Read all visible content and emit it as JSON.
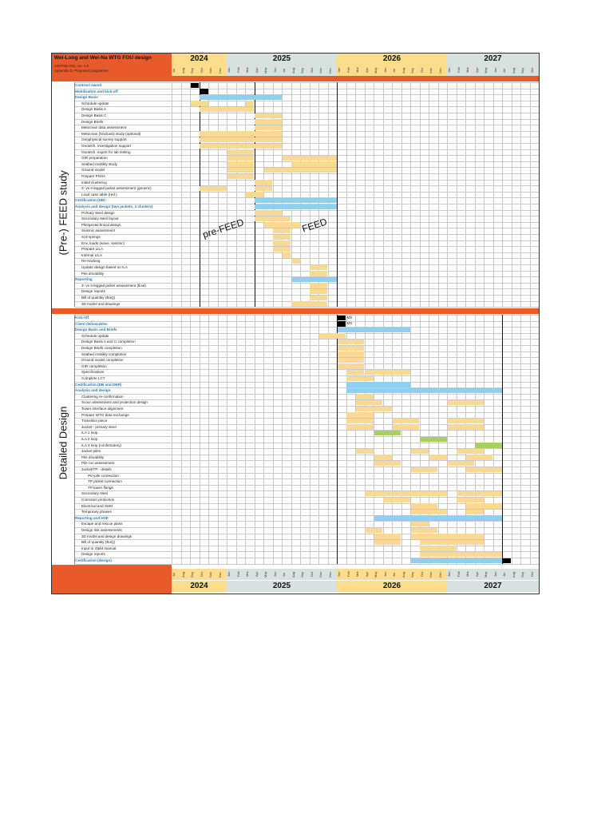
{
  "header": {
    "title": "Wei-Long and Wei-Na WTG FOU design",
    "doc_ref": "A257852-001, ver. 2.0",
    "appendix": "Appendix D, Proposed programme"
  },
  "years": [
    {
      "label": "2024",
      "color": "#fbdd8c"
    },
    {
      "label": "2025",
      "color": "#d7e1df"
    },
    {
      "label": "2026",
      "color": "#fbdd8c"
    },
    {
      "label": "2027",
      "color": "#d7e1df"
    }
  ],
  "months": [
    "Jul",
    "Aug",
    "Sep",
    "Oct",
    "Nov",
    "Dec",
    "Jan",
    "Feb",
    "Mar",
    "Apr",
    "May",
    "Jun",
    "Jul",
    "Aug",
    "Sep",
    "Oct",
    "Nov",
    "Dec",
    "Jan",
    "Feb",
    "Mar",
    "Apr",
    "May",
    "Jun",
    "Jul",
    "Aug",
    "Sep",
    "Oct",
    "Nov",
    "Dec",
    "Jan",
    "Feb",
    "Mar",
    "Apr",
    "May",
    "Jun",
    "Jul",
    "Aug",
    "Sep",
    "Oct"
  ],
  "colors": {
    "orange_band": "#e85a2a",
    "task": "#f9d993",
    "milestone": "#000000",
    "blue": "#8fd0f0",
    "green": "#a8cf62",
    "header_text": "#2a7ab0"
  },
  "sections": {
    "prefeed_label": "(Pre-) FEED study",
    "detailed_label": "Detailed Design",
    "prefeed_phase": "pre-FEED",
    "feed_phase": "FEED"
  },
  "tasks_top": [
    {
      "label": "Contract award",
      "hdr": true,
      "bars": [
        [
          2,
          2,
          "k"
        ]
      ]
    },
    {
      "label": "Mobilization and kick-off",
      "hdr": true,
      "bars": [
        [
          3,
          3,
          "k"
        ]
      ]
    },
    {
      "label": "Design Basis",
      "hdr": true,
      "bars": [
        [
          3,
          11,
          "b"
        ]
      ]
    },
    {
      "label": "Schedule update",
      "bars": [
        [
          2,
          3,
          "y"
        ],
        [
          8,
          8,
          "y"
        ]
      ]
    },
    {
      "label": "Design Basis A",
      "bars": [
        [
          3,
          8,
          "y"
        ]
      ]
    },
    {
      "label": "Design Basis C",
      "bars": [
        [
          9,
          11,
          "y"
        ]
      ]
    },
    {
      "label": "Design Briefs",
      "bars": [
        [
          9,
          11,
          "y"
        ]
      ]
    },
    {
      "label": "Metocean data assessment",
      "bars": [
        [
          9,
          11,
          "y"
        ]
      ]
    },
    {
      "label": "Metocean (hindcast) study (optional)",
      "bars": [
        [
          3,
          11,
          "y"
        ]
      ]
    },
    {
      "label": "Geophysical survey support",
      "bars": [
        [
          3,
          11,
          "y"
        ]
      ]
    },
    {
      "label": "Geotech. investigation support",
      "bars": [
        [
          3,
          11,
          "y"
        ]
      ]
    },
    {
      "label": "Geotech. expert for lab testing",
      "bars": [
        [
          6,
          8,
          "y"
        ]
      ]
    },
    {
      "label": "GIR preparation",
      "bars": [
        [
          6,
          8,
          "y"
        ],
        [
          12,
          17,
          "y"
        ]
      ]
    },
    {
      "label": "Seabed mobility study",
      "bars": [
        [
          6,
          8,
          "y"
        ],
        [
          13,
          17,
          "y"
        ]
      ]
    },
    {
      "label": "Ground model",
      "bars": [
        [
          6,
          8,
          "y"
        ],
        [
          10,
          17,
          "y"
        ]
      ]
    },
    {
      "label": "Prepare PSHA",
      "bars": [
        [
          6,
          8,
          "y"
        ]
      ]
    },
    {
      "label": "Initial clustering",
      "bars": [
        [
          9,
          10,
          "y"
        ]
      ]
    },
    {
      "label": "3- vs 4-legged jacket assessment (generic)",
      "bars": [
        [
          3,
          5,
          "y"
        ],
        [
          9,
          10,
          "y"
        ]
      ]
    },
    {
      "label": "Load case table (red.)",
      "bars": [
        [
          8,
          9,
          "y"
        ]
      ]
    },
    {
      "label": "Certification (DB)",
      "hdr": true,
      "bars": [
        [
          9,
          17,
          "b"
        ]
      ]
    },
    {
      "label": "Analysis and design (two jackets, 3 clusters)",
      "hdr": true,
      "bars": [
        [
          9,
          17,
          "b"
        ]
      ]
    },
    {
      "label": "Primary steel design",
      "bars": [
        [
          9,
          11,
          "y"
        ]
      ]
    },
    {
      "label": "Secondary steel layout",
      "bars": [
        [
          9,
          12,
          "y"
        ]
      ]
    },
    {
      "label": "Pile/geotechnical design",
      "bars": [
        [
          10,
          13,
          "y"
        ]
      ]
    },
    {
      "label": "Seismic assessment",
      "bars": [
        [
          11,
          12,
          "y"
        ]
      ]
    },
    {
      "label": "Soil springs",
      "bars": [
        [
          11,
          12,
          "y"
        ]
      ]
    },
    {
      "label": "Env. loads (wave, seismic)",
      "bars": [
        [
          11,
          12,
          "y"
        ]
      ]
    },
    {
      "label": "Prepare LILA",
      "bars": [
        [
          11,
          12,
          "y"
        ]
      ]
    },
    {
      "label": "Internal LILA",
      "bars": [
        [
          12,
          12,
          "y"
        ]
      ]
    },
    {
      "label": "Re-tracking",
      "bars": [
        [
          13,
          13,
          "y"
        ]
      ]
    },
    {
      "label": "Update design based on ILA",
      "bars": [
        [
          15,
          16,
          "y"
        ]
      ]
    },
    {
      "label": "Pile drivability",
      "bars": [
        [
          15,
          16,
          "y"
        ]
      ]
    },
    {
      "label": "Reporting",
      "hdr": true,
      "bars": [
        [
          13,
          17,
          "b"
        ]
      ]
    },
    {
      "label": "3- vs 4-legged jacket assessment (final)",
      "bars": [
        [
          15,
          16,
          "y"
        ]
      ]
    },
    {
      "label": "Design reports",
      "bars": [
        [
          15,
          16,
          "y"
        ]
      ]
    },
    {
      "label": "Bill of quantity (BoQ)",
      "bars": [
        [
          15,
          16,
          "y"
        ]
      ]
    },
    {
      "label": "3D model and drawings",
      "bars": [
        [
          13,
          16,
          "y"
        ]
      ]
    }
  ],
  "tasks_bottom": [
    {
      "label": "Kick-off",
      "hdr": true,
      "bars": [
        [
          18,
          18,
          "k"
        ]
      ],
      "ms": "MS"
    },
    {
      "label": "Client deliverables",
      "hdr": true,
      "bars": [
        [
          18,
          18,
          "k"
        ]
      ],
      "ms": "MS"
    },
    {
      "label": "Design Basis and Briefs",
      "hdr": true,
      "bars": [
        [
          18,
          25,
          "b"
        ]
      ]
    },
    {
      "label": "Schedule update",
      "bars": [
        [
          16,
          18,
          "y"
        ]
      ]
    },
    {
      "label": "Design Basis A and C completion",
      "bars": [
        [
          18,
          20,
          "y"
        ]
      ]
    },
    {
      "label": "Design Briefs completion",
      "bars": [
        [
          18,
          20,
          "y"
        ]
      ]
    },
    {
      "label": "Seabed mobility completion",
      "bars": [
        [
          18,
          20,
          "y"
        ]
      ]
    },
    {
      "label": "Ground model completion",
      "bars": [
        [
          18,
          20,
          "y"
        ]
      ]
    },
    {
      "label": "GIR completion",
      "bars": [
        [
          18,
          20,
          "y"
        ]
      ]
    },
    {
      "label": "Specifications",
      "bars": [
        [
          19,
          20,
          "y"
        ],
        [
          21,
          25,
          "y"
        ]
      ]
    },
    {
      "label": "Complete LCT",
      "bars": [
        [
          19,
          21,
          "y"
        ]
      ]
    },
    {
      "label": "Certification (DB and DBR)",
      "hdr": true,
      "bars": [
        [
          19,
          25,
          "b"
        ]
      ]
    },
    {
      "label": "Analysis and design",
      "hdr": true,
      "bars": [
        [
          19,
          35,
          "b"
        ]
      ]
    },
    {
      "label": "Clustering re-confirmation",
      "bars": [
        [
          20,
          21,
          "y"
        ]
      ]
    },
    {
      "label": "Scour assessment and protection design",
      "bars": [
        [
          20,
          22,
          "y"
        ],
        [
          30,
          33,
          "y"
        ]
      ]
    },
    {
      "label": "Tower interface alignment",
      "bars": [
        [
          20,
          23,
          "y"
        ]
      ]
    },
    {
      "label": "Prepare WTG data exchange",
      "bars": [
        [
          19,
          21,
          "y"
        ]
      ]
    },
    {
      "label": "Transition piece",
      "bars": [
        [
          19,
          21,
          "y"
        ],
        [
          24,
          26,
          "y"
        ],
        [
          30,
          33,
          "y"
        ]
      ]
    },
    {
      "label": "Jacket - primary steel",
      "bars": [
        [
          19,
          21,
          "y"
        ],
        [
          24,
          26,
          "y"
        ],
        [
          30,
          33,
          "y"
        ]
      ]
    },
    {
      "label": "ILA 1 loop",
      "bars": [
        [
          22,
          24,
          "g"
        ]
      ]
    },
    {
      "label": "ILA 2 loop",
      "bars": [
        [
          27,
          29,
          "g"
        ]
      ]
    },
    {
      "label": "ILA 3 loop (confirmatory)",
      "bars": [
        [
          33,
          35,
          "g"
        ]
      ]
    },
    {
      "label": "Jacket piles",
      "bars": [
        [
          20,
          21,
          "y"
        ],
        [
          26,
          27,
          "y"
        ],
        [
          31,
          33,
          "y"
        ]
      ]
    },
    {
      "label": "Pile drivability",
      "bars": [
        [
          22,
          23,
          "y"
        ],
        [
          28,
          29,
          "y"
        ],
        [
          32,
          34,
          "y"
        ]
      ]
    },
    {
      "label": "Pile run assessment",
      "bars": [
        [
          22,
          24,
          "y"
        ],
        [
          30,
          32,
          "y"
        ]
      ]
    },
    {
      "label": "Jacket/TP - details",
      "bars": [
        [
          26,
          28,
          "y"
        ],
        [
          32,
          35,
          "y"
        ]
      ]
    },
    {
      "label": "Pin-pile connection",
      "ind2": true,
      "bars": []
    },
    {
      "label": "TP-jacket connection",
      "ind2": true,
      "bars": []
    },
    {
      "label": "TP tower flange",
      "ind2": true,
      "bars": []
    },
    {
      "label": "Secondary steel",
      "bars": [
        [
          21,
          29,
          "y"
        ],
        [
          31,
          35,
          "y"
        ]
      ]
    },
    {
      "label": "Corrosion protection",
      "bars": [
        [
          23,
          25,
          "y"
        ],
        [
          31,
          33,
          "y"
        ]
      ]
    },
    {
      "label": "Electrical and SHM",
      "bars": [
        [
          26,
          28,
          "y"
        ],
        [
          32,
          35,
          "y"
        ]
      ]
    },
    {
      "label": "Temporary phases",
      "bars": [
        [
          26,
          29,
          "y"
        ],
        [
          32,
          33,
          "y"
        ]
      ]
    },
    {
      "label": "Reporting and HSE",
      "hdr": true,
      "bars": [
        [
          22,
          35,
          "b"
        ]
      ]
    },
    {
      "label": "Escape and rescue plans",
      "bars": [
        [
          26,
          27,
          "y"
        ]
      ]
    },
    {
      "label": "Design risk assessments",
      "bars": [
        [
          21,
          22,
          "y"
        ],
        [
          26,
          28,
          "y"
        ]
      ]
    },
    {
      "label": "3D model and design drawings",
      "bars": [
        [
          22,
          24,
          "y"
        ],
        [
          26,
          33,
          "y"
        ]
      ]
    },
    {
      "label": "Bill of quantity (BoQ)",
      "bars": [
        [
          22,
          24,
          "y"
        ],
        [
          27,
          33,
          "y"
        ]
      ]
    },
    {
      "label": "Input to O&M manual",
      "bars": [
        [
          27,
          30,
          "y"
        ]
      ]
    },
    {
      "label": "Design reports",
      "bars": [
        [
          27,
          35,
          "y"
        ]
      ]
    },
    {
      "label": "Certification (design)",
      "hdr": true,
      "bars": [
        [
          26,
          35,
          "b"
        ],
        [
          36,
          36,
          "k"
        ]
      ]
    }
  ]
}
